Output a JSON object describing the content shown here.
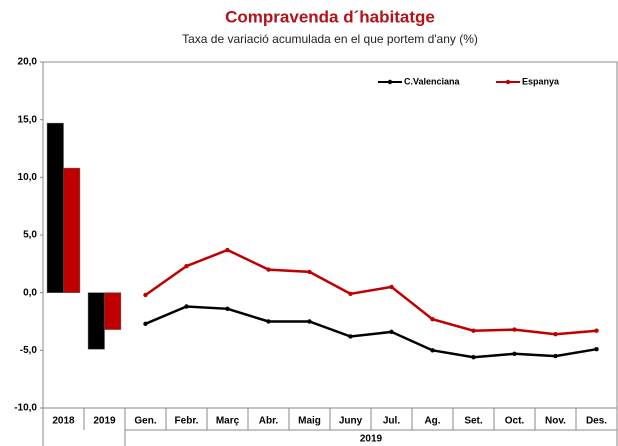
{
  "chart_data": {
    "type": "bar+line",
    "title": "Compravenda d´habitatge",
    "subtitle": "Taxa de variació acumulada en el que portem d'any (%)",
    "bar_categories": [
      "2018",
      "2019"
    ],
    "categories": [
      "Gen.",
      "Febr.",
      "Març",
      "Abr.",
      "Maig",
      "Juny",
      "Jul.",
      "Ag.",
      "Set.",
      "Oct.",
      "Nov.",
      "Des."
    ],
    "x_group_label": "2019",
    "series": [
      {
        "name": "C.Valenciana",
        "color": "#000000",
        "bar_values": [
          14.7,
          -4.9
        ],
        "values": [
          -2.7,
          -1.2,
          -1.4,
          -2.5,
          -2.5,
          -3.8,
          -3.4,
          -5.0,
          -5.6,
          -5.3,
          -5.5,
          -4.9
        ]
      },
      {
        "name": "Espanya",
        "color": "#c00000",
        "bar_values": [
          10.8,
          -3.2
        ],
        "values": [
          -0.2,
          2.3,
          3.7,
          2.0,
          1.8,
          -0.1,
          0.5,
          -2.3,
          -3.3,
          -3.2,
          -3.6,
          -3.3
        ]
      }
    ],
    "ylim": [
      -10,
      20
    ],
    "yticks": [
      {
        "value": -10,
        "label": "-10,0"
      },
      {
        "value": -5,
        "label": "-5,0"
      },
      {
        "value": 0,
        "label": "0,0"
      },
      {
        "value": 5,
        "label": "5,0"
      },
      {
        "value": 10,
        "label": "10,0"
      },
      {
        "value": 15,
        "label": "15,0"
      },
      {
        "value": 20,
        "label": "20,0"
      }
    ],
    "legend": "top-right"
  }
}
